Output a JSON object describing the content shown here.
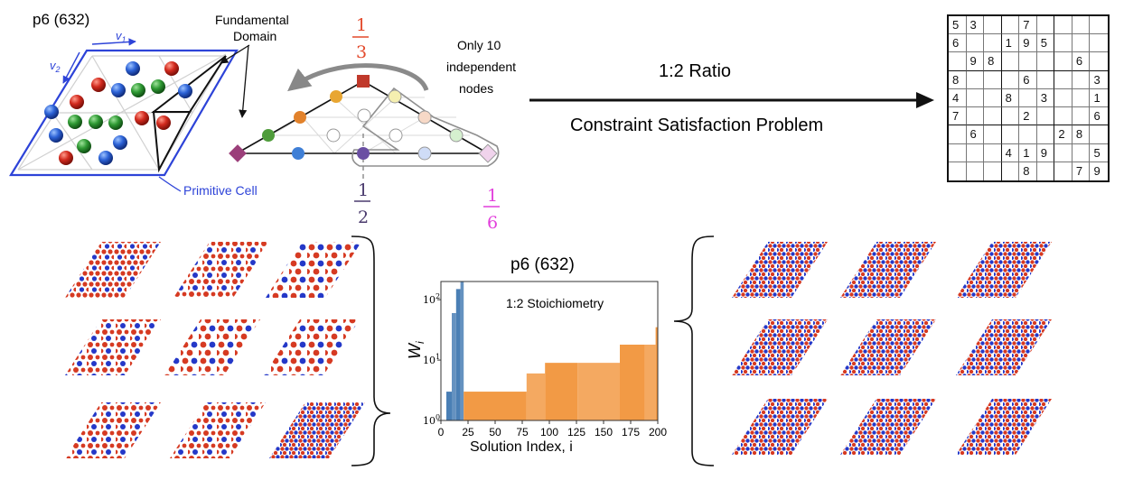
{
  "left_cell": {
    "title": "p6 (632)",
    "v1": "v",
    "v1_sub": "1",
    "v2": "v",
    "v2_sub": "2",
    "fundamental_domain_label": [
      "Fundamental",
      "Domain"
    ],
    "primitive_cell_label": "Primitive Cell"
  },
  "node_graph": {
    "fraction_top": {
      "num": "1",
      "den": "3",
      "color": "#e34a2c"
    },
    "fraction_bottom": {
      "num": "1",
      "den": "2",
      "color": "#4b3b6e"
    },
    "fraction_right": {
      "num": "1",
      "den": "6",
      "color": "#e23fdc"
    },
    "independent_nodes_label": [
      "Only 10",
      "independent",
      "nodes"
    ]
  },
  "arrow": {
    "label_top": "1:2 Ratio",
    "label_bottom": "Constraint Satisfaction Problem"
  },
  "sudoku": {
    "grid": [
      [
        "5",
        "3",
        "",
        "",
        "7",
        "",
        "",
        "",
        ""
      ],
      [
        "6",
        "",
        "",
        "1",
        "9",
        "5",
        "",
        "",
        ""
      ],
      [
        "",
        "9",
        "8",
        "",
        "",
        "",
        "",
        "6",
        ""
      ],
      [
        "8",
        "",
        "",
        "",
        "6",
        "",
        "",
        "",
        "3"
      ],
      [
        "4",
        "",
        "",
        "8",
        "",
        "3",
        "",
        "",
        "1"
      ],
      [
        "7",
        "",
        "",
        "",
        "2",
        "",
        "",
        "",
        "6"
      ],
      [
        "",
        "6",
        "",
        "",
        "",
        "",
        "2",
        "8",
        ""
      ],
      [
        "",
        "",
        "",
        "4",
        "1",
        "9",
        "",
        "",
        "5"
      ],
      [
        "",
        "",
        "",
        "",
        "8",
        "",
        "",
        "7",
        "9"
      ]
    ]
  },
  "histogram": {
    "title": "p6 (632)",
    "annotation": "1:2 Stoichiometry"
  },
  "chart_data": {
    "type": "bar",
    "title": "p6 (632)",
    "annotation": "1:2 Stoichiometry",
    "xlabel": "Solution Index, i",
    "ylabel": "W",
    "ylabel_sub": "i",
    "xlim": [
      0,
      200
    ],
    "ylim": [
      1,
      200
    ],
    "y_scale": "log",
    "x_ticks": [
      "0",
      "25",
      "50",
      "75",
      "100",
      "125",
      "150",
      "175",
      "200"
    ],
    "y_ticks": [
      "10",
      "10",
      "10"
    ],
    "y_tick_exponents": [
      "0",
      "1",
      "2"
    ],
    "series": [
      {
        "color": "#4a7fb5",
        "bars": [
          {
            "x0": 5,
            "x1": 10,
            "y": 3
          },
          {
            "x0": 10,
            "x1": 14,
            "y": 60
          },
          {
            "x0": 14,
            "x1": 18,
            "y": 150
          },
          {
            "x0": 18,
            "x1": 21,
            "y": 200
          }
        ]
      },
      {
        "color": "#f29a45",
        "bars": [
          {
            "x0": 21,
            "x1": 79,
            "y": 3
          },
          {
            "x0": 79,
            "x1": 96,
            "y": 6
          },
          {
            "x0": 96,
            "x1": 126,
            "y": 9
          },
          {
            "x0": 126,
            "x1": 165,
            "y": 9
          },
          {
            "x0": 165,
            "x1": 188,
            "y": 18
          },
          {
            "x0": 188,
            "x1": 198,
            "y": 18
          },
          {
            "x0": 198,
            "x1": 200,
            "y": 35
          }
        ]
      }
    ]
  }
}
